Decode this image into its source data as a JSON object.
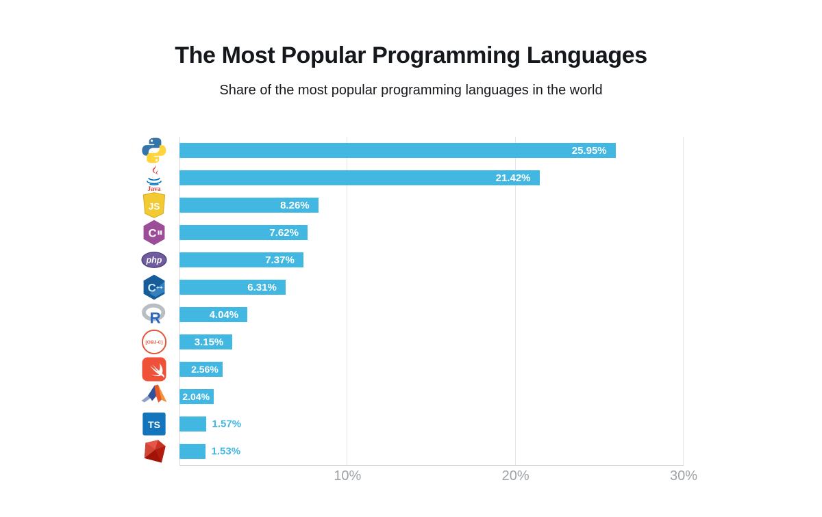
{
  "page": {
    "background_color": "#ffffff"
  },
  "header": {
    "title": "The Most Popular Programming Languages",
    "subtitle": "Share of the most popular programming languages in the world"
  },
  "chart_data": {
    "type": "bar",
    "orientation": "horizontal",
    "title": "The Most Popular Programming Languages",
    "subtitle": "Share of the most popular programming languages in the world",
    "categories": [
      "Python",
      "Java",
      "JavaScript",
      "C#",
      "PHP",
      "C++",
      "R",
      "Objective-C",
      "Swift",
      "MATLAB",
      "TypeScript",
      "Ruby"
    ],
    "slugs": [
      "python",
      "java",
      "javascript",
      "csharp",
      "php",
      "cpp",
      "r",
      "objective-c",
      "swift",
      "matlab",
      "typescript",
      "ruby"
    ],
    "icons": [
      "python-icon",
      "java-icon",
      "javascript-icon",
      "csharp-icon",
      "php-icon",
      "cpp-icon",
      "r-icon",
      "objective-c-icon",
      "swift-icon",
      "matlab-icon",
      "typescript-icon",
      "ruby-icon"
    ],
    "values": [
      25.95,
      21.42,
      8.26,
      7.62,
      7.37,
      6.31,
      4.04,
      3.15,
      2.56,
      2.04,
      1.57,
      1.53
    ],
    "value_labels": [
      "25.95%",
      "21.42%",
      "8.26%",
      "7.62%",
      "7.37%",
      "6.31%",
      "4.04%",
      "3.15%",
      "2.56%",
      "2.04%",
      "1.57%",
      "1.53%"
    ],
    "xlabel": "",
    "ylabel": "",
    "xlim": [
      0,
      30
    ],
    "x_ticks": [
      {
        "value": 10,
        "label": "10%"
      },
      {
        "value": 20,
        "label": "20%"
      },
      {
        "value": 30,
        "label": "30%"
      }
    ],
    "gridlines": [
      0,
      10,
      20,
      30
    ],
    "grid": "vertical",
    "legend": "none",
    "bar_color": "#42b7e2",
    "value_label_inside_color": "#ffffff",
    "value_label_outside_color": "#42b7e2",
    "tick_label_color": "#9da1a6",
    "outside_label_threshold": 1.8,
    "tight_label_threshold": 3.0
  }
}
